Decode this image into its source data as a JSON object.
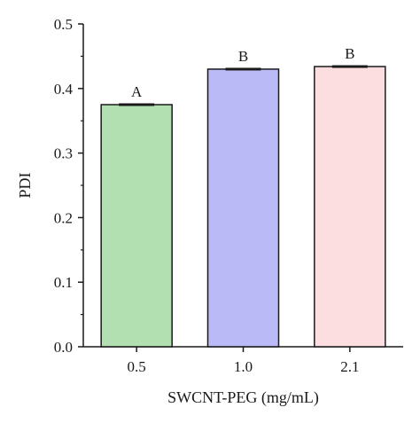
{
  "chart_data": {
    "type": "bar",
    "categories": [
      "0.5",
      "1.0",
      "2.1"
    ],
    "values": [
      0.375,
      0.43,
      0.434
    ],
    "errors": [
      0.002,
      0.001,
      0.001
    ],
    "significance_labels": [
      "A",
      "B",
      "B"
    ],
    "bar_colors": [
      "#b3e0b0",
      "#babaf7",
      "#fcdde0"
    ],
    "title": "",
    "xlabel": "SWCNT-PEG (mg/mL)",
    "ylabel": "PDI",
    "ylim": [
      0.0,
      0.5
    ],
    "yticks": [
      "0.0",
      "0.1",
      "0.2",
      "0.3",
      "0.4",
      "0.5"
    ],
    "grid": false,
    "legend": "none"
  }
}
